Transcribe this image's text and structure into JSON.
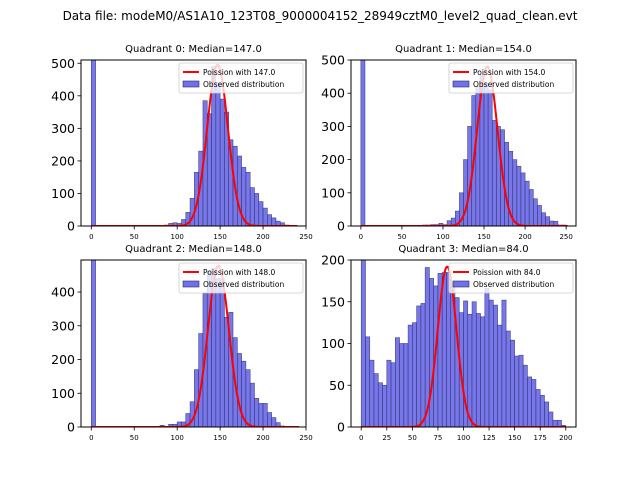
{
  "figure": {
    "suptitle": "Data file: modeM0/AS1A10_123T08_9000004152_28949cztM0_level2_quad_clean.evt"
  },
  "colors": {
    "bar_fill": "#7070e8",
    "bar_edge": "#2a2a6a",
    "poisson_line": "#ff0000"
  },
  "chart_data": [
    {
      "type": "bar",
      "title": "Quadrant 0: Median=147.0",
      "xlabel": "",
      "ylabel": "",
      "xlim": [
        -12,
        250
      ],
      "ylim": [
        0,
        510
      ],
      "xticks": [
        0,
        50,
        100,
        150,
        200,
        250
      ],
      "yticks": [
        0,
        100,
        200,
        300,
        400,
        500
      ],
      "bin_width": 5,
      "bin_starts": [
        0,
        85,
        90,
        95,
        100,
        105,
        110,
        115,
        120,
        125,
        130,
        135,
        140,
        145,
        150,
        155,
        160,
        165,
        170,
        175,
        180,
        185,
        190,
        195,
        200,
        205,
        210,
        215,
        220,
        225
      ],
      "counts": [
        600,
        3,
        8,
        10,
        8,
        20,
        42,
        85,
        165,
        230,
        385,
        345,
        490,
        440,
        390,
        350,
        265,
        245,
        215,
        180,
        165,
        118,
        100,
        75,
        55,
        35,
        25,
        15,
        10,
        3
      ],
      "poisson_mean": 147.0,
      "poisson_peak": 495,
      "poisson_range": [
        0,
        240
      ],
      "legend": [
        "Poission with 147.0",
        "Observed distribution"
      ],
      "legend_loc": "upper right"
    },
    {
      "type": "bar",
      "title": "Quadrant 1: Median=154.0",
      "xlabel": "",
      "ylabel": "",
      "xlim": [
        -12,
        262
      ],
      "ylim": [
        0,
        500
      ],
      "xticks": [
        0,
        50,
        100,
        150,
        200,
        250
      ],
      "yticks": [
        0,
        100,
        200,
        300,
        400,
        500
      ],
      "bin_width": 5,
      "bin_starts": [
        0,
        75,
        80,
        85,
        90,
        95,
        100,
        105,
        110,
        115,
        120,
        125,
        130,
        135,
        140,
        145,
        150,
        155,
        160,
        165,
        170,
        175,
        180,
        185,
        190,
        195,
        200,
        205,
        210,
        215,
        220,
        225,
        230,
        235,
        240,
        245
      ],
      "counts": [
        600,
        3,
        3,
        4,
        4,
        8,
        4,
        16,
        24,
        45,
        100,
        200,
        300,
        393,
        420,
        455,
        430,
        410,
        318,
        300,
        290,
        252,
        225,
        200,
        180,
        160,
        135,
        110,
        82,
        62,
        40,
        28,
        15,
        14,
        3,
        3
      ],
      "poisson_mean": 154.0,
      "poisson_peak": 480,
      "poisson_range": [
        0,
        252
      ],
      "legend": [
        "Poission with 154.0",
        "Observed distribution"
      ],
      "legend_loc": "upper right"
    },
    {
      "type": "bar",
      "title": "Quadrant 2: Median=148.0",
      "xlabel": "",
      "ylabel": "",
      "xlim": [
        -12,
        250
      ],
      "ylim": [
        0,
        495
      ],
      "xticks": [
        0,
        50,
        100,
        150,
        200,
        250
      ],
      "yticks": [
        0,
        100,
        200,
        300,
        400
      ],
      "bin_width": 5,
      "bin_starts": [
        0,
        80,
        85,
        90,
        95,
        100,
        105,
        110,
        115,
        120,
        125,
        130,
        135,
        140,
        145,
        150,
        155,
        160,
        165,
        170,
        175,
        180,
        185,
        190,
        195,
        200,
        205,
        210,
        215,
        220
      ],
      "counts": [
        600,
        5,
        2,
        8,
        8,
        15,
        15,
        40,
        75,
        170,
        277,
        395,
        460,
        470,
        440,
        440,
        325,
        340,
        265,
        218,
        195,
        170,
        130,
        85,
        70,
        70,
        43,
        28,
        13,
        3
      ],
      "poisson_mean": 148.0,
      "poisson_peak": 478,
      "poisson_range": [
        0,
        242
      ],
      "legend": [
        "Poission with 148.0",
        "Observed distribution"
      ],
      "legend_loc": "upper right"
    },
    {
      "type": "bar",
      "title": "Quadrant 3: Median=84.0",
      "xlabel": "",
      "ylabel": "",
      "xlim": [
        -10,
        210
      ],
      "ylim": [
        0,
        200
      ],
      "xticks": [
        0,
        25,
        50,
        75,
        100,
        125,
        150,
        175,
        200
      ],
      "yticks": [
        0,
        50,
        100,
        150,
        200
      ],
      "bin_width": 4.1667,
      "bin_starts": [
        0,
        4.17,
        8.33,
        12.5,
        16.67,
        20.83,
        25,
        29.17,
        33.33,
        37.5,
        41.67,
        45.83,
        50,
        54.17,
        58.33,
        62.5,
        66.67,
        70.83,
        75,
        79.17,
        83.33,
        87.5,
        91.67,
        95.83,
        100,
        104.17,
        108.33,
        112.5,
        116.67,
        120.83,
        125,
        129.17,
        133.33,
        137.5,
        141.67,
        145.83,
        150,
        154.17,
        158.33,
        162.5,
        166.67,
        170.83,
        175,
        179.17,
        183.33,
        187.5,
        191.67,
        195.83
      ],
      "counts": [
        240,
        108,
        80,
        64,
        53,
        50,
        80,
        77,
        107,
        100,
        100,
        122,
        125,
        145,
        148,
        191,
        178,
        169,
        184,
        185,
        185,
        171,
        155,
        137,
        151,
        135,
        150,
        136,
        132,
        166,
        152,
        146,
        122,
        152,
        115,
        104,
        85,
        86,
        74,
        60,
        57,
        45,
        38,
        30,
        18,
        8,
        8,
        2
      ],
      "poisson_mean": 84.0,
      "poisson_peak": 192,
      "poisson_range": [
        0,
        200
      ],
      "legend": [
        "Poission with 84.0",
        "Observed distribution"
      ],
      "legend_loc": "upper right"
    }
  ]
}
